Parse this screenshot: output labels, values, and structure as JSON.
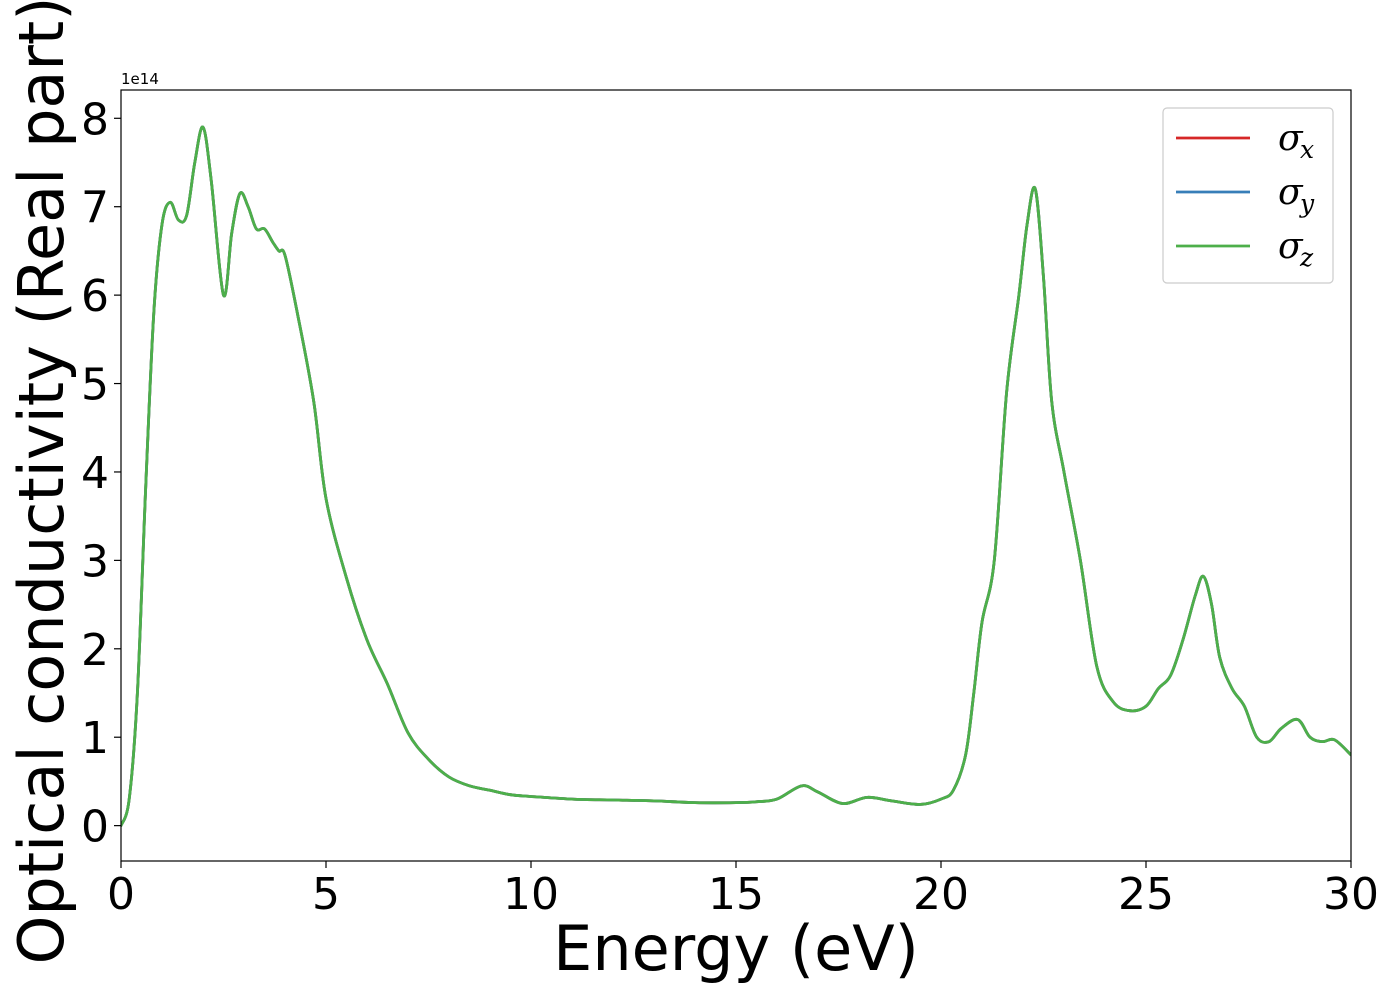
{
  "chart_data": {
    "type": "line",
    "title": "",
    "xlabel": "Energy (eV)",
    "ylabel": "Optical conductivity (Real part)",
    "y_offset_text": "1e14",
    "xlim": [
      0,
      30
    ],
    "ylim": [
      -0.4,
      8.32
    ],
    "x_ticks": [
      0,
      5,
      10,
      15,
      20,
      25,
      30
    ],
    "x_tick_labels": [
      "0",
      "5",
      "10",
      "15",
      "20",
      "25",
      "30"
    ],
    "y_ticks": [
      0,
      1,
      2,
      3,
      4,
      5,
      6,
      7,
      8
    ],
    "y_tick_labels": [
      "0",
      "1",
      "2",
      "3",
      "4",
      "5",
      "6",
      "7",
      "8"
    ],
    "grid": false,
    "legend_position": "top-right",
    "x": [
      0,
      0.2,
      0.4,
      0.6,
      0.8,
      1.0,
      1.2,
      1.4,
      1.6,
      1.8,
      2.0,
      2.2,
      2.5,
      2.7,
      2.9,
      3.1,
      3.3,
      3.5,
      3.7,
      3.85,
      4.0,
      4.3,
      4.7,
      5.0,
      5.5,
      6.0,
      6.5,
      7.0,
      7.5,
      8.0,
      8.5,
      9.0,
      9.5,
      10.0,
      11.0,
      12.0,
      13.0,
      14.0,
      15.0,
      15.5,
      16.0,
      16.6,
      17.0,
      17.6,
      18.2,
      18.8,
      19.5,
      20.0,
      20.3,
      20.6,
      20.8,
      21.0,
      21.3,
      21.6,
      21.9,
      22.1,
      22.3,
      22.5,
      22.7,
      23.0,
      23.4,
      23.8,
      24.2,
      24.6,
      25.0,
      25.3,
      25.6,
      25.9,
      26.2,
      26.4,
      26.6,
      26.8,
      27.1,
      27.4,
      27.7,
      28.0,
      28.3,
      28.7,
      29.0,
      29.3,
      29.6,
      30.0
    ],
    "series": [
      {
        "name": "σx",
        "symbol": "σ",
        "subscript": "x",
        "color": "#d62728",
        "values": [
          0.0,
          0.3,
          1.5,
          3.8,
          5.8,
          6.8,
          7.05,
          6.85,
          6.9,
          7.5,
          7.9,
          7.3,
          6.0,
          6.7,
          7.15,
          7.0,
          6.75,
          6.75,
          6.6,
          6.5,
          6.45,
          5.8,
          4.8,
          3.7,
          2.8,
          2.1,
          1.6,
          1.05,
          0.75,
          0.55,
          0.45,
          0.4,
          0.35,
          0.33,
          0.3,
          0.29,
          0.28,
          0.26,
          0.26,
          0.27,
          0.3,
          0.45,
          0.38,
          0.25,
          0.32,
          0.28,
          0.24,
          0.3,
          0.4,
          0.8,
          1.5,
          2.3,
          3.0,
          4.9,
          6.0,
          6.8,
          7.2,
          6.2,
          4.8,
          4.0,
          3.0,
          1.8,
          1.4,
          1.3,
          1.35,
          1.55,
          1.7,
          2.1,
          2.6,
          2.82,
          2.5,
          1.9,
          1.55,
          1.35,
          1.0,
          0.95,
          1.1,
          1.2,
          1.0,
          0.95,
          0.97,
          0.8
        ]
      },
      {
        "name": "σy",
        "symbol": "σ",
        "subscript": "y",
        "color": "#377eb8",
        "values": [
          0.0,
          0.3,
          1.5,
          3.8,
          5.8,
          6.8,
          7.05,
          6.85,
          6.9,
          7.5,
          7.9,
          7.3,
          6.0,
          6.7,
          7.15,
          7.0,
          6.75,
          6.75,
          6.6,
          6.5,
          6.45,
          5.8,
          4.8,
          3.7,
          2.8,
          2.1,
          1.6,
          1.05,
          0.75,
          0.55,
          0.45,
          0.4,
          0.35,
          0.33,
          0.3,
          0.29,
          0.28,
          0.26,
          0.26,
          0.27,
          0.3,
          0.45,
          0.38,
          0.25,
          0.32,
          0.28,
          0.24,
          0.3,
          0.4,
          0.8,
          1.5,
          2.3,
          3.0,
          4.9,
          6.0,
          6.8,
          7.2,
          6.2,
          4.8,
          4.0,
          3.0,
          1.8,
          1.4,
          1.3,
          1.35,
          1.55,
          1.7,
          2.1,
          2.6,
          2.82,
          2.5,
          1.9,
          1.55,
          1.35,
          1.0,
          0.95,
          1.1,
          1.2,
          1.0,
          0.95,
          0.97,
          0.8
        ]
      },
      {
        "name": "σz",
        "symbol": "σ",
        "subscript": "z",
        "color": "#4daf4a",
        "values": [
          0.0,
          0.3,
          1.5,
          3.8,
          5.8,
          6.8,
          7.05,
          6.85,
          6.9,
          7.5,
          7.9,
          7.3,
          6.0,
          6.7,
          7.15,
          7.0,
          6.75,
          6.75,
          6.6,
          6.5,
          6.45,
          5.8,
          4.8,
          3.7,
          2.8,
          2.1,
          1.6,
          1.05,
          0.75,
          0.55,
          0.45,
          0.4,
          0.35,
          0.33,
          0.3,
          0.29,
          0.28,
          0.26,
          0.26,
          0.27,
          0.3,
          0.45,
          0.38,
          0.25,
          0.32,
          0.28,
          0.24,
          0.3,
          0.4,
          0.8,
          1.5,
          2.3,
          3.0,
          4.9,
          6.0,
          6.8,
          7.2,
          6.2,
          4.8,
          4.0,
          3.0,
          1.8,
          1.4,
          1.3,
          1.35,
          1.55,
          1.7,
          2.1,
          2.6,
          2.82,
          2.5,
          1.9,
          1.55,
          1.35,
          1.0,
          0.95,
          1.1,
          1.2,
          1.0,
          0.95,
          0.97,
          0.8
        ]
      }
    ]
  }
}
